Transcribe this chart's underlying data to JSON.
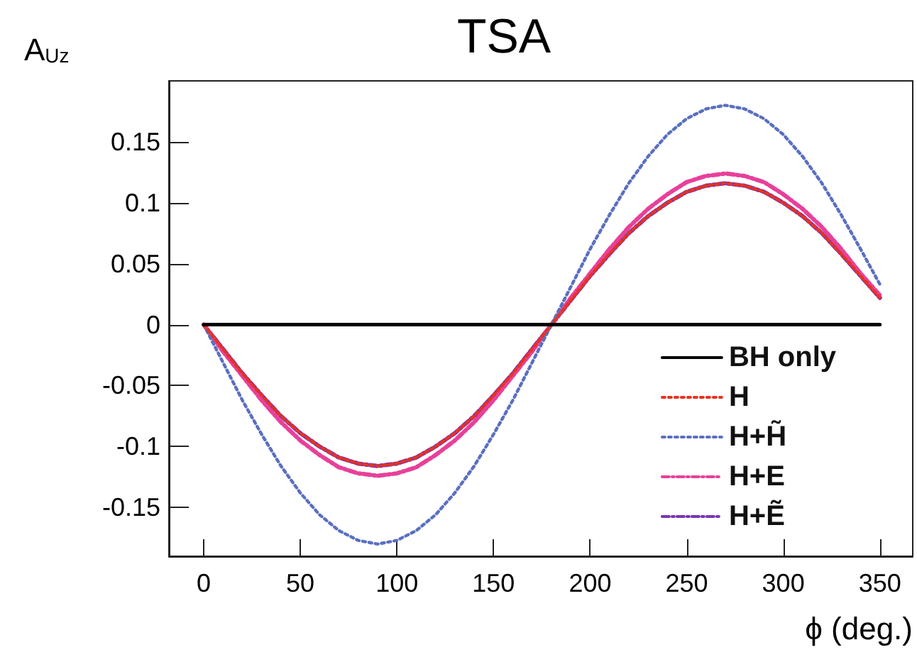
{
  "chart_data": {
    "type": "line",
    "title": "TSA",
    "xlabel": "ϕ (deg.)",
    "ylabel": "A$_{Uz}$",
    "x": [
      0,
      10,
      20,
      30,
      40,
      50,
      60,
      70,
      80,
      90,
      100,
      110,
      120,
      130,
      140,
      150,
      160,
      170,
      180,
      190,
      200,
      210,
      220,
      230,
      240,
      250,
      260,
      270,
      280,
      290,
      300,
      310,
      320,
      330,
      340,
      350
    ],
    "series": [
      {
        "name": "BH only",
        "color": "#000000",
        "line_style": "solid",
        "x": [
          0,
          350
        ],
        "values": [
          0,
          0
        ]
      },
      {
        "name": "H",
        "color": "#e8321e",
        "line_style": "dotted",
        "values": [
          0,
          -0.02,
          -0.04,
          -0.058,
          -0.075,
          -0.089,
          -0.1,
          -0.109,
          -0.114,
          -0.116,
          -0.114,
          -0.109,
          -0.1,
          -0.089,
          -0.075,
          -0.058,
          -0.04,
          -0.02,
          0,
          0.02,
          0.04,
          0.058,
          0.075,
          0.089,
          0.1,
          0.109,
          0.114,
          0.116,
          0.114,
          0.109,
          0.1,
          0.089,
          0.075,
          0.058,
          0.04,
          0.022
        ]
      },
      {
        "name": "H+H̃",
        "color": "#5a6fc0",
        "line_style": "dotted",
        "values": [
          0,
          -0.031,
          -0.062,
          -0.09,
          -0.116,
          -0.138,
          -0.156,
          -0.169,
          -0.177,
          -0.18,
          -0.177,
          -0.169,
          -0.156,
          -0.138,
          -0.116,
          -0.09,
          -0.062,
          -0.031,
          0,
          0.031,
          0.062,
          0.09,
          0.116,
          0.138,
          0.156,
          0.169,
          0.177,
          0.18,
          0.177,
          0.169,
          0.156,
          0.138,
          0.116,
          0.09,
          0.062,
          0.033
        ]
      },
      {
        "name": "H+E",
        "color": "#e8409a",
        "line_style": "dashed",
        "values": [
          0,
          -0.022,
          -0.042,
          -0.062,
          -0.08,
          -0.095,
          -0.107,
          -0.117,
          -0.122,
          -0.124,
          -0.122,
          -0.117,
          -0.107,
          -0.095,
          -0.08,
          -0.062,
          -0.042,
          -0.022,
          0,
          0.022,
          0.042,
          0.062,
          0.08,
          0.095,
          0.107,
          0.117,
          0.122,
          0.124,
          0.122,
          0.117,
          0.107,
          0.095,
          0.08,
          0.062,
          0.042,
          0.024
        ]
      },
      {
        "name": "H+Ẽ",
        "color": "#7a35b5",
        "line_style": "dashed",
        "values": [
          0,
          -0.02,
          -0.04,
          -0.058,
          -0.075,
          -0.089,
          -0.1,
          -0.109,
          -0.114,
          -0.116,
          -0.114,
          -0.109,
          -0.1,
          -0.089,
          -0.075,
          -0.058,
          -0.04,
          -0.02,
          0,
          0.02,
          0.04,
          0.058,
          0.075,
          0.089,
          0.1,
          0.109,
          0.114,
          0.116,
          0.114,
          0.109,
          0.1,
          0.089,
          0.075,
          0.058,
          0.04,
          0.022
        ]
      }
    ],
    "xlim": [
      -18,
      367
    ],
    "ylim": [
      -0.19,
      0.2
    ],
    "xticks": [
      0,
      50,
      100,
      150,
      200,
      250,
      300,
      350
    ],
    "yticks": [
      -0.15,
      -0.1,
      -0.05,
      0,
      0.05,
      0.1,
      0.15
    ],
    "grid": false,
    "legend": "bottom right",
    "marker": "none"
  }
}
